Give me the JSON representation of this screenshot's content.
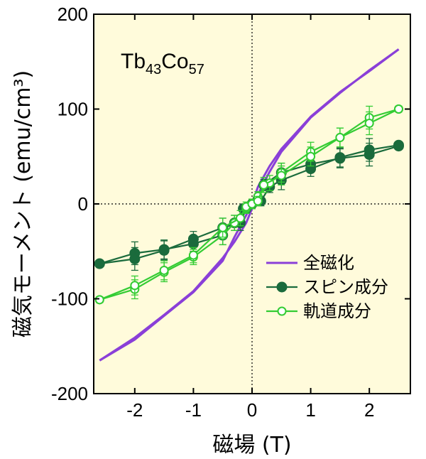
{
  "chart_data": {
    "type": "line",
    "xlabel": "磁場 (T)",
    "ylabel": "磁気モーメント (emu/cm³)",
    "xlim": [
      -2.7,
      2.7
    ],
    "ylim": [
      -200,
      200
    ],
    "xticks": [
      -2,
      -1,
      0,
      1,
      2
    ],
    "yticks": [
      -200,
      -100,
      0,
      100,
      200
    ],
    "xtick_labels": [
      "-2",
      "-1",
      "0",
      "1",
      "2"
    ],
    "ytick_labels": [
      "-200",
      "-100",
      "0",
      "100",
      "200"
    ],
    "zero_lines": "dotted",
    "background": "#fffbdb",
    "legend_position": "center-right",
    "annotation": {
      "base1": "Tb",
      "sub1": "43",
      "base2": "Co",
      "sub2": "57"
    },
    "series": [
      {
        "name": "全磁化",
        "color": "#8a3fd8",
        "marker": "none",
        "branches": [
          {
            "x": [
              -2.6,
              -2.0,
              -1.5,
              -1.0,
              -0.5,
              -0.3,
              -0.1,
              0.0,
              0.1,
              0.3,
              0.5,
              1.0,
              1.5,
              2.0,
              2.5
            ],
            "y": [
              -165,
              -143,
              -118,
              -93,
              -60,
              -35,
              -12,
              0,
              18,
              40,
              58,
              92,
              118,
              140,
              163
            ]
          },
          {
            "x": [
              -2.6,
              -2.0,
              -1.5,
              -1.0,
              -0.5,
              -0.3,
              -0.1,
              0.0,
              0.1,
              0.3,
              0.5,
              1.0,
              1.5,
              2.0,
              2.5
            ],
            "y": [
              -165,
              -141,
              -117,
              -92,
              -57,
              -40,
              -20,
              -5,
              10,
              34,
              55,
              91,
              117,
              141,
              163
            ]
          }
        ]
      },
      {
        "name": "スピン成分",
        "color": "#1a6b3c",
        "marker": "filled-circle",
        "branches": [
          {
            "x": [
              -2.6,
              -2.0,
              -1.5,
              -1.0,
              -0.5,
              -0.3,
              -0.15,
              0.0,
              0.1,
              0.2,
              0.5,
              1.0,
              1.5,
              2.0,
              2.5
            ],
            "y": [
              -63,
              -52,
              -48,
              -42,
              -33,
              -20,
              -5,
              0,
              5,
              20,
              33,
              42,
              48,
              52,
              61
            ],
            "err": [
              3,
              12,
              10,
              8,
              10,
              8,
              5,
              5,
              5,
              6,
              10,
              8,
              10,
              12,
              3
            ]
          },
          {
            "x": [
              -2.6,
              -2.0,
              -1.5,
              -1.0,
              -0.5,
              -0.2,
              -0.1,
              0.0,
              0.15,
              0.3,
              0.5,
              1.0,
              1.5,
              2.0,
              2.5
            ],
            "y": [
              -63,
              -58,
              -49,
              -37,
              -25,
              -20,
              -5,
              0,
              3,
              18,
              25,
              37,
              49,
              57,
              62
            ],
            "err": [
              3,
              12,
              10,
              8,
              10,
              8,
              5,
              5,
              5,
              6,
              10,
              8,
              10,
              12,
              3
            ]
          }
        ]
      },
      {
        "name": "軌道成分",
        "color": "#33cc33",
        "marker": "open-circle",
        "branches": [
          {
            "x": [
              -2.6,
              -2.0,
              -1.5,
              -1.0,
              -0.5,
              -0.3,
              -0.1,
              0.0,
              0.1,
              0.3,
              0.5,
              1.0,
              1.5,
              2.0,
              2.5
            ],
            "y": [
              -101,
              -90,
              -72,
              -56,
              -33,
              -20,
              -5,
              0,
              8,
              22,
              33,
              55,
              70,
              91,
              100
            ],
            "err": [
              3,
              10,
              10,
              8,
              10,
              8,
              5,
              5,
              5,
              8,
              10,
              10,
              10,
              12,
              3
            ]
          },
          {
            "x": [
              -2.6,
              -2.0,
              -1.5,
              -1.0,
              -0.5,
              -0.2,
              -0.1,
              0.0,
              0.1,
              0.2,
              0.5,
              1.0,
              1.5,
              2.0,
              2.5
            ],
            "y": [
              -101,
              -86,
              -70,
              -54,
              -25,
              -15,
              -3,
              0,
              3,
              20,
              30,
              50,
              70,
              85,
              100
            ],
            "err": [
              3,
              10,
              10,
              8,
              10,
              8,
              5,
              5,
              5,
              8,
              10,
              10,
              10,
              12,
              3
            ]
          }
        ]
      }
    ]
  }
}
